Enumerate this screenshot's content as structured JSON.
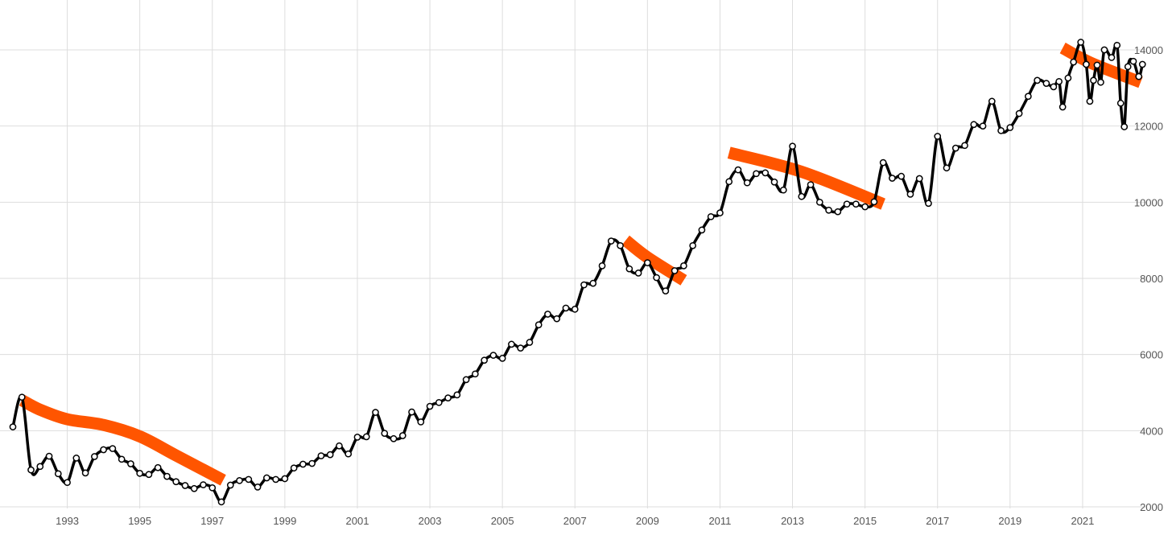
{
  "chart_data": {
    "type": "line",
    "title": "",
    "xlabel": "",
    "ylabel": "",
    "xlim": [
      1991.5,
      2022.4
    ],
    "ylim": [
      2000,
      14500
    ],
    "x_tick_labels": [
      "1993",
      "1995",
      "1997",
      "1999",
      "2001",
      "2003",
      "2005",
      "2007",
      "2009",
      "2011",
      "2013",
      "2015",
      "2017",
      "2019",
      "2021"
    ],
    "y_tick_labels": [
      "2000",
      "4000",
      "6000",
      "8000",
      "10000",
      "12000",
      "14000"
    ],
    "grid": true,
    "legend": "none",
    "colors": {
      "line": "#000000",
      "trend": "#ff5500",
      "grid": "#dddddd",
      "tick_text": "#555555"
    },
    "series": [
      {
        "points": [
          [
            1991.5,
            4100
          ],
          [
            1991.75,
            4880
          ],
          [
            1992.0,
            2970
          ],
          [
            1992.25,
            3060
          ],
          [
            1992.5,
            3330
          ],
          [
            1992.75,
            2870
          ],
          [
            1993.0,
            2640
          ],
          [
            1993.25,
            3280
          ],
          [
            1993.5,
            2890
          ],
          [
            1993.75,
            3320
          ],
          [
            1994.0,
            3500
          ],
          [
            1994.25,
            3530
          ],
          [
            1994.5,
            3250
          ],
          [
            1994.75,
            3130
          ],
          [
            1995.0,
            2880
          ],
          [
            1995.25,
            2850
          ],
          [
            1995.5,
            3030
          ],
          [
            1995.75,
            2800
          ],
          [
            1996.0,
            2660
          ],
          [
            1996.25,
            2560
          ],
          [
            1996.5,
            2480
          ],
          [
            1996.75,
            2580
          ],
          [
            1997.0,
            2500
          ],
          [
            1997.25,
            2130
          ],
          [
            1997.5,
            2570
          ],
          [
            1997.75,
            2690
          ],
          [
            1998.0,
            2720
          ],
          [
            1998.25,
            2520
          ],
          [
            1998.5,
            2760
          ],
          [
            1998.75,
            2720
          ],
          [
            1999.0,
            2740
          ],
          [
            1999.25,
            3020
          ],
          [
            1999.5,
            3120
          ],
          [
            1999.75,
            3140
          ],
          [
            2000.0,
            3340
          ],
          [
            2000.25,
            3370
          ],
          [
            2000.5,
            3600
          ],
          [
            2000.75,
            3390
          ],
          [
            2001.0,
            3830
          ],
          [
            2001.25,
            3840
          ],
          [
            2001.5,
            4480
          ],
          [
            2001.75,
            3930
          ],
          [
            2002.0,
            3790
          ],
          [
            2002.25,
            3870
          ],
          [
            2002.5,
            4490
          ],
          [
            2002.75,
            4230
          ],
          [
            2003.0,
            4640
          ],
          [
            2003.25,
            4740
          ],
          [
            2003.5,
            4860
          ],
          [
            2003.75,
            4940
          ],
          [
            2004.0,
            5340
          ],
          [
            2004.25,
            5490
          ],
          [
            2004.5,
            5850
          ],
          [
            2004.75,
            5980
          ],
          [
            2005.0,
            5900
          ],
          [
            2005.25,
            6270
          ],
          [
            2005.5,
            6170
          ],
          [
            2005.75,
            6320
          ],
          [
            2006.0,
            6780
          ],
          [
            2006.25,
            7060
          ],
          [
            2006.5,
            6940
          ],
          [
            2006.75,
            7220
          ],
          [
            2007.0,
            7190
          ],
          [
            2007.25,
            7830
          ],
          [
            2007.5,
            7870
          ],
          [
            2007.75,
            8330
          ],
          [
            2008.0,
            8980
          ],
          [
            2008.25,
            8860
          ],
          [
            2008.5,
            8250
          ],
          [
            2008.75,
            8140
          ],
          [
            2009.0,
            8410
          ],
          [
            2009.25,
            8020
          ],
          [
            2009.5,
            7670
          ],
          [
            2009.75,
            8200
          ],
          [
            2010.0,
            8330
          ],
          [
            2010.25,
            8860
          ],
          [
            2010.5,
            9270
          ],
          [
            2010.75,
            9620
          ],
          [
            2011.0,
            9720
          ],
          [
            2011.25,
            10540
          ],
          [
            2011.5,
            10850
          ],
          [
            2011.75,
            10510
          ],
          [
            2012.0,
            10750
          ],
          [
            2012.25,
            10770
          ],
          [
            2012.5,
            10530
          ],
          [
            2012.75,
            10320
          ],
          [
            2013.0,
            11470
          ],
          [
            2013.25,
            10150
          ],
          [
            2013.5,
            10460
          ],
          [
            2013.75,
            10000
          ],
          [
            2014.0,
            9790
          ],
          [
            2014.25,
            9750
          ],
          [
            2014.5,
            9950
          ],
          [
            2014.75,
            9950
          ],
          [
            2015.0,
            9880
          ],
          [
            2015.25,
            10010
          ],
          [
            2015.5,
            11040
          ],
          [
            2015.75,
            10630
          ],
          [
            2016.0,
            10680
          ],
          [
            2016.25,
            10210
          ],
          [
            2016.5,
            10620
          ],
          [
            2016.75,
            9970
          ],
          [
            2017.0,
            11730
          ],
          [
            2017.25,
            10900
          ],
          [
            2017.5,
            11420
          ],
          [
            2017.75,
            11490
          ],
          [
            2018.0,
            12040
          ],
          [
            2018.25,
            12000
          ],
          [
            2018.5,
            12650
          ],
          [
            2018.75,
            11880
          ],
          [
            2019.0,
            11960
          ],
          [
            2019.25,
            12330
          ],
          [
            2019.5,
            12780
          ],
          [
            2019.75,
            13200
          ],
          [
            2020.0,
            13120
          ],
          [
            2020.2,
            13030
          ],
          [
            2020.35,
            13170
          ],
          [
            2020.45,
            12500
          ],
          [
            2020.6,
            13260
          ],
          [
            2020.75,
            13680
          ],
          [
            2020.95,
            14200
          ],
          [
            2021.1,
            13620
          ],
          [
            2021.2,
            12650
          ],
          [
            2021.3,
            13200
          ],
          [
            2021.4,
            13600
          ],
          [
            2021.5,
            13150
          ],
          [
            2021.6,
            14000
          ],
          [
            2021.8,
            13800
          ],
          [
            2021.95,
            14120
          ],
          [
            2022.05,
            12600
          ],
          [
            2022.15,
            11980
          ],
          [
            2022.25,
            13560
          ],
          [
            2022.4,
            13700
          ],
          [
            2022.55,
            13300
          ],
          [
            2022.65,
            13620
          ]
        ]
      }
    ],
    "trend_segments": [
      [
        [
          1991.75,
          4800
        ],
        [
          1992.25,
          4550
        ],
        [
          1993.0,
          4300
        ],
        [
          1994.0,
          4150
        ],
        [
          1995.0,
          3850
        ],
        [
          1996.0,
          3350
        ],
        [
          1997.3,
          2700
        ]
      ],
      [
        [
          2008.4,
          9000
        ],
        [
          2009.0,
          8550
        ],
        [
          2010.0,
          7950
        ]
      ],
      [
        [
          2011.25,
          11300
        ],
        [
          2013.25,
          10800
        ],
        [
          2015.5,
          9950
        ]
      ],
      [
        [
          2020.45,
          14050
        ],
        [
          2021.25,
          13650
        ],
        [
          2022.6,
          13150
        ]
      ]
    ]
  }
}
